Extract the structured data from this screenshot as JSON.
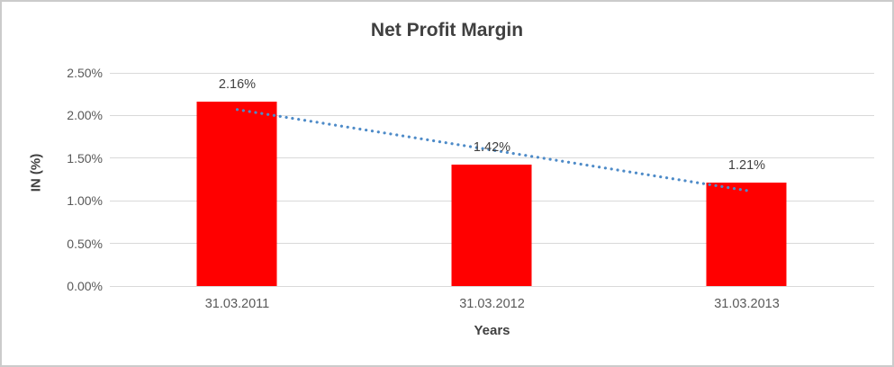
{
  "chart_data": {
    "type": "bar",
    "title": "Net Profit Margin",
    "xlabel": "Years",
    "ylabel": "IN (%)",
    "categories": [
      "31.03.2011",
      "31.03.2012",
      "31.03.2013"
    ],
    "values": [
      2.16,
      1.42,
      1.21
    ],
    "data_labels": [
      "2.16%",
      "1.42%",
      "1.21%"
    ],
    "ylim": [
      0,
      2.5
    ],
    "ytick_labels": [
      "2.50%",
      "2.00%",
      "1.50%",
      "1.00%",
      "0.50%",
      "0.00%"
    ],
    "grid": true,
    "legend": false,
    "bar_color": "#ff0000",
    "trendline": {
      "style": "dotted",
      "color": "#4e8bc8",
      "start_value": 2.07,
      "end_value": 1.12
    },
    "colors": {
      "title_text": "#404040",
      "tick_text": "#595959",
      "gridline": "#d9d9d9",
      "frame_border": "#cbcbcb"
    }
  }
}
